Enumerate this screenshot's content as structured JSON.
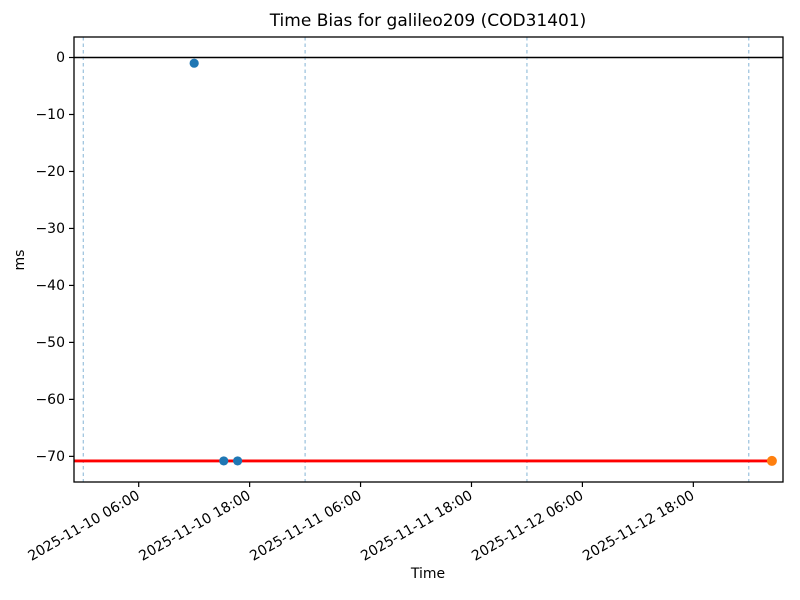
{
  "chart_data": {
    "type": "scatter",
    "title": "Time Bias for galileo209 (COD31401)",
    "xlabel": "Time",
    "ylabel": "ms",
    "background": "#ffffff",
    "x_unit": "hours since 2025-11-10 00:00",
    "xlim": [
      -1,
      75.7
    ],
    "ylim": [
      -74.5,
      3.6
    ],
    "grid": "vertical day-boundary dashed lines only",
    "legend": "none",
    "xticks": [
      {
        "hours": 6,
        "label": "2025-11-10 06:00"
      },
      {
        "hours": 18,
        "label": "2025-11-10 18:00"
      },
      {
        "hours": 30,
        "label": "2025-11-11 06:00"
      },
      {
        "hours": 42,
        "label": "2025-11-11 18:00"
      },
      {
        "hours": 54,
        "label": "2025-11-12 06:00"
      },
      {
        "hours": 66,
        "label": "2025-11-12 18:00"
      }
    ],
    "yticks": [
      {
        "ms": 0,
        "label": "0"
      },
      {
        "ms": -10,
        "label": "−10"
      },
      {
        "ms": -20,
        "label": "−20"
      },
      {
        "ms": -30,
        "label": "−30"
      },
      {
        "ms": -40,
        "label": "−40"
      },
      {
        "ms": -50,
        "label": "−50"
      },
      {
        "ms": -60,
        "label": "−60"
      },
      {
        "ms": -70,
        "label": "−70"
      }
    ],
    "day_gridlines_hours": [
      0,
      24,
      48,
      72
    ],
    "gridline_style": {
      "color": "#1f77b4",
      "opacity": 0.55,
      "dash": "3.5 3",
      "width": 1
    },
    "series": [
      {
        "name": "bias-samples",
        "color": "#1f77b4",
        "marker": "circle",
        "marker_radius": 4.6,
        "points": [
          {
            "time": "2025-11-10 12:00",
            "hours": 12.0,
            "ms": -1.0
          },
          {
            "time": "2025-11-10 15:12",
            "hours": 15.2,
            "ms": -70.8
          },
          {
            "time": "2025-11-10 16:42",
            "hours": 16.7,
            "ms": -70.8
          }
        ]
      },
      {
        "name": "latest-sample",
        "color": "#ff7f0e",
        "marker": "circle",
        "marker_radius": 5.0,
        "points": [
          {
            "time": "2025-11-13 02:30",
            "hours": 74.5,
            "ms": -70.8
          }
        ]
      }
    ],
    "lines": [
      {
        "name": "zero-reference-line",
        "color": "#000000",
        "y": 0,
        "x_start_hours": -1,
        "x_end_hours": 75.7,
        "style": "solid",
        "width": 1.5
      },
      {
        "name": "current-bias-line",
        "color": "#ff0000",
        "y": -70.8,
        "x_start_hours": -1,
        "x_end_hours": 74.5,
        "style": "solid",
        "width": 2.8
      }
    ]
  }
}
